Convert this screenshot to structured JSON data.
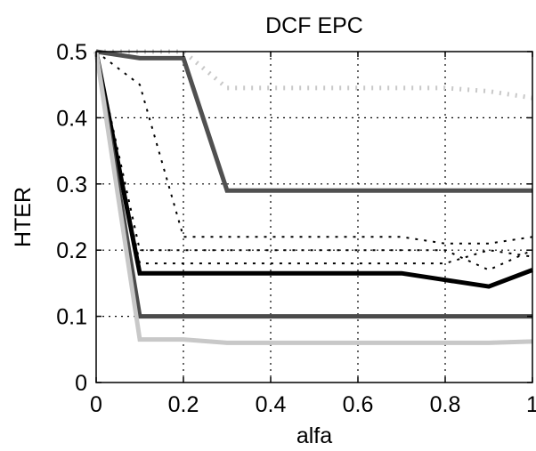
{
  "chart_data": {
    "type": "line",
    "title": "DCF EPC",
    "xlabel": "alfa",
    "ylabel": "HTER",
    "xlim": [
      0,
      1
    ],
    "ylim": [
      0,
      0.5
    ],
    "xticks": [
      "0",
      "0.2",
      "0.4",
      "0.6",
      "0.8",
      "1"
    ],
    "yticks": [
      "0",
      "0.1",
      "0.2",
      "0.3",
      "0.4",
      "0.5"
    ],
    "grid": true,
    "series": [
      {
        "style": "dotted-light-thick",
        "color": "#c8c8c8",
        "x": [
          0,
          0.1,
          0.2,
          0.3,
          0.4,
          0.5,
          0.6,
          0.7,
          0.8,
          0.9,
          1.0
        ],
        "y": [
          0.5,
          0.5,
          0.5,
          0.445,
          0.445,
          0.445,
          0.445,
          0.445,
          0.445,
          0.44,
          0.43
        ]
      },
      {
        "style": "solid-darkgray",
        "color": "#505050",
        "x": [
          0,
          0.1,
          0.2,
          0.3,
          0.4,
          0.5,
          0.6,
          0.7,
          0.8,
          0.9,
          1.0
        ],
        "y": [
          0.5,
          0.49,
          0.49,
          0.29,
          0.29,
          0.29,
          0.29,
          0.29,
          0.29,
          0.29,
          0.29
        ]
      },
      {
        "style": "dotted-black",
        "color": "#000000",
        "x": [
          0,
          0.1,
          0.2,
          0.3,
          0.4,
          0.5,
          0.6,
          0.7,
          0.8,
          0.9,
          1.0
        ],
        "y": [
          0.5,
          0.45,
          0.22,
          0.22,
          0.22,
          0.22,
          0.22,
          0.22,
          0.21,
          0.21,
          0.22
        ]
      },
      {
        "style": "dotted-black",
        "color": "#000000",
        "x": [
          0,
          0.1,
          0.2,
          0.3,
          0.4,
          0.5,
          0.6,
          0.7,
          0.8,
          0.9,
          1.0
        ],
        "y": [
          0.5,
          0.2,
          0.2,
          0.2,
          0.2,
          0.2,
          0.2,
          0.2,
          0.2,
          0.17,
          0.2
        ]
      },
      {
        "style": "dotted-black",
        "color": "#000000",
        "x": [
          0,
          0.1,
          0.2,
          0.3,
          0.4,
          0.5,
          0.6,
          0.7,
          0.8,
          0.9,
          1.0
        ],
        "y": [
          0.5,
          0.18,
          0.18,
          0.18,
          0.18,
          0.18,
          0.18,
          0.18,
          0.18,
          0.2,
          0.19
        ]
      },
      {
        "style": "solid-black-thick",
        "color": "#000000",
        "x": [
          0,
          0.1,
          0.2,
          0.3,
          0.4,
          0.5,
          0.6,
          0.7,
          0.8,
          0.9,
          1.0
        ],
        "y": [
          0.5,
          0.165,
          0.165,
          0.165,
          0.165,
          0.165,
          0.165,
          0.165,
          0.155,
          0.145,
          0.17
        ]
      },
      {
        "style": "solid-darkgray",
        "color": "#4a4a4a",
        "x": [
          0,
          0.1,
          0.2,
          0.3,
          0.4,
          0.5,
          0.6,
          0.7,
          0.8,
          0.9,
          1.0
        ],
        "y": [
          0.5,
          0.1,
          0.1,
          0.1,
          0.1,
          0.1,
          0.1,
          0.1,
          0.1,
          0.1,
          0.1
        ]
      },
      {
        "style": "solid-lightgray",
        "color": "#c8c8c8",
        "x": [
          0,
          0.1,
          0.2,
          0.3,
          0.4,
          0.5,
          0.6,
          0.7,
          0.8,
          0.9,
          1.0
        ],
        "y": [
          0.5,
          0.065,
          0.065,
          0.06,
          0.06,
          0.06,
          0.06,
          0.06,
          0.06,
          0.06,
          0.062
        ]
      }
    ]
  }
}
